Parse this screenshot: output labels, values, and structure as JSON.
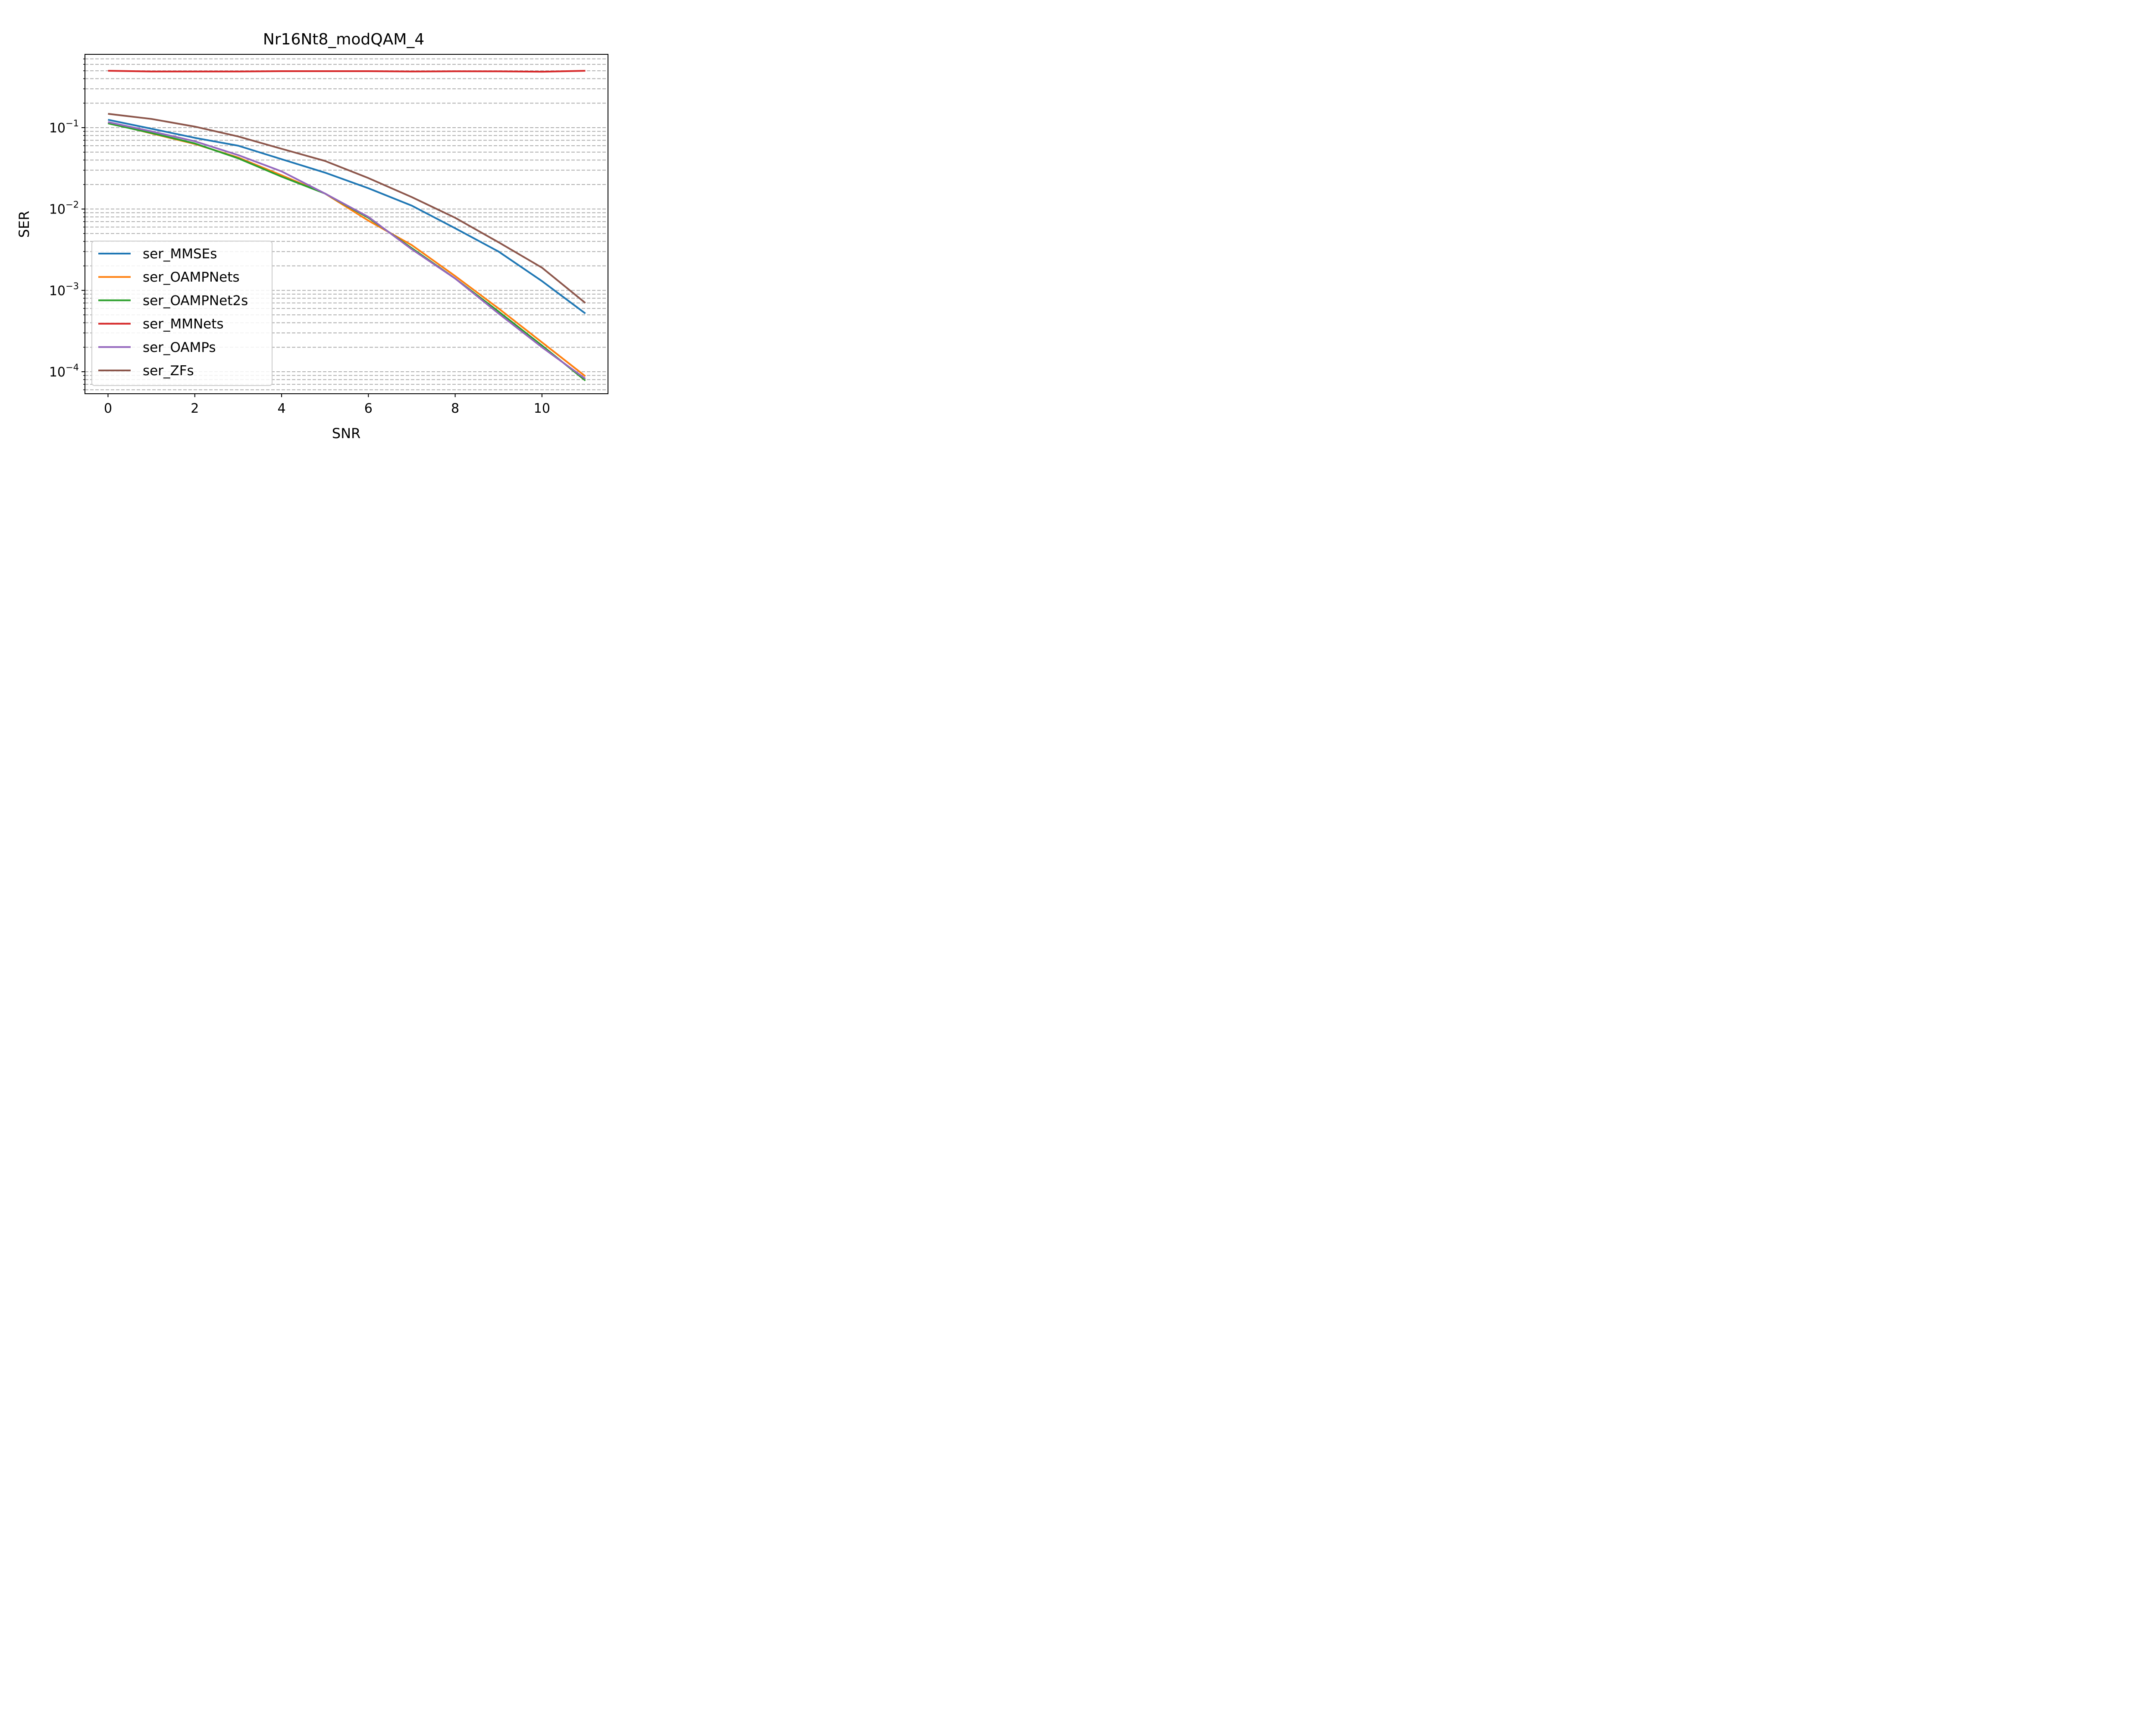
{
  "chart_data": {
    "type": "line",
    "title": "Nr16Nt8_modQAM_4",
    "xlabel": "SNR",
    "ylabel": "SER",
    "yscale": "log",
    "xlim": [
      -0.55,
      11.55
    ],
    "ylim": [
      5e-05,
      0.8
    ],
    "grid": "y-major-and-minor, dashed gray",
    "legend_position": "lower-left",
    "x_ticks": [
      0,
      2,
      4,
      6,
      8,
      10
    ],
    "y_ticks": [
      {
        "value": 0.1,
        "base": "10",
        "exp": "−1"
      },
      {
        "value": 0.01,
        "base": "10",
        "exp": "−2"
      },
      {
        "value": 0.001,
        "base": "10",
        "exp": "−3"
      },
      {
        "value": 0.0001,
        "base": "10",
        "exp": "−4"
      }
    ],
    "x": [
      0,
      1,
      2,
      3,
      4,
      5,
      6,
      7,
      8,
      9,
      10,
      11
    ],
    "series": [
      {
        "name": "ser_MMSEs",
        "color": "#1f77b4",
        "values": [
          0.125,
          0.097,
          0.075,
          0.06,
          0.041,
          0.028,
          0.018,
          0.011,
          0.0058,
          0.003,
          0.0013,
          0.00052
        ]
      },
      {
        "name": "ser_OAMPNets",
        "color": "#ff7f0e",
        "values": [
          0.115,
          0.085,
          0.063,
          0.043,
          0.026,
          0.0155,
          0.0072,
          0.0036,
          0.0015,
          0.0006,
          0.00023,
          8.8e-05
        ]
      },
      {
        "name": "ser_OAMPNet2s",
        "color": "#2ca02c",
        "values": [
          0.113,
          0.086,
          0.064,
          0.042,
          0.025,
          0.0155,
          0.0078,
          0.0033,
          0.0014,
          0.00055,
          0.00021,
          7.8e-05
        ]
      },
      {
        "name": "ser_MMNets",
        "color": "#d62728",
        "values": [
          0.5,
          0.49,
          0.49,
          0.49,
          0.495,
          0.495,
          0.495,
          0.49,
          0.493,
          0.492,
          0.487,
          0.5
        ]
      },
      {
        "name": "ser_OAMPs",
        "color": "#9467bd",
        "values": [
          0.117,
          0.09,
          0.068,
          0.046,
          0.029,
          0.0155,
          0.008,
          0.0032,
          0.0014,
          0.00052,
          0.0002,
          8.2e-05
        ]
      },
      {
        "name": "ser_ZFs",
        "color": "#8c564b",
        "values": [
          0.148,
          0.128,
          0.103,
          0.078,
          0.055,
          0.039,
          0.024,
          0.014,
          0.0078,
          0.0039,
          0.0019,
          0.0007
        ]
      }
    ]
  }
}
